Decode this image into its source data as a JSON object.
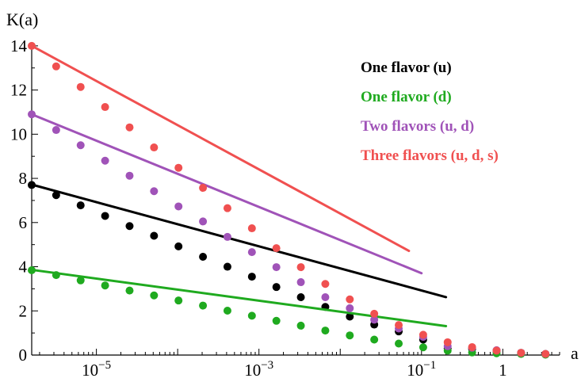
{
  "chart_data": {
    "type": "line",
    "xlabel": "a",
    "ylabel": "K(a)",
    "xscale": "log",
    "xlim": [
      1.6e-06,
      5
    ],
    "ylim": [
      0,
      15
    ],
    "x_ticks": [
      {
        "value": 1e-05,
        "base": "10",
        "exp": "−5"
      },
      {
        "value": 0.001,
        "base": "10",
        "exp": "−3"
      },
      {
        "value": 0.1,
        "base": "10",
        "exp": "−1"
      },
      {
        "value": 1,
        "base": "1",
        "exp": ""
      }
    ],
    "y_ticks": [
      0,
      2,
      4,
      6,
      8,
      10,
      12,
      14
    ],
    "legend_position": "top-right",
    "series": [
      {
        "name": "One flavor (u)",
        "color": "#000000",
        "line": {
          "x0": 1.6e-06,
          "y0": 7.72,
          "slope_per_decade": -1.0,
          "x_end": 0.2
        },
        "points_x": [
          1.6e-06,
          3.2e-06,
          6.4e-06,
          1.28e-05,
          2.56e-05,
          5.12e-05,
          0.0001024,
          0.0002048,
          0.0004096,
          0.0008192,
          0.001638,
          0.003277,
          0.006554,
          0.01311,
          0.02621,
          0.05243,
          0.1049,
          0.2097,
          0.4194,
          0.8389,
          1.678,
          3.355
        ],
        "points_y": [
          7.7,
          7.24,
          6.78,
          6.3,
          5.84,
          5.4,
          4.92,
          4.45,
          4.0,
          3.55,
          3.08,
          2.62,
          2.18,
          1.74,
          1.38,
          1.07,
          0.7,
          0.3,
          0.28,
          0.2,
          0.1,
          0.05
        ]
      },
      {
        "name": "One flavor (d)",
        "color": "#1faa1f",
        "line": {
          "x0": 1.6e-06,
          "y0": 3.86,
          "slope_per_decade": -0.5,
          "x_end": 0.2
        },
        "points_x": [
          1.6e-06,
          3.2e-06,
          6.4e-06,
          1.28e-05,
          2.56e-05,
          5.12e-05,
          0.0001024,
          0.0002048,
          0.0004096,
          0.0008192,
          0.001638,
          0.003277,
          0.006554,
          0.01311,
          0.02621,
          0.05243,
          0.1049,
          0.2097,
          0.4194,
          0.8389,
          1.678,
          3.355
        ],
        "points_y": [
          3.84,
          3.62,
          3.38,
          3.15,
          2.92,
          2.7,
          2.47,
          2.24,
          2.01,
          1.78,
          1.55,
          1.33,
          1.11,
          0.89,
          0.7,
          0.52,
          0.35,
          0.2,
          0.12,
          0.08,
          0.05,
          0.02
        ]
      },
      {
        "name": "Two flavors (u, d)",
        "color": "#a053b8",
        "line": {
          "x0": 1.6e-06,
          "y0": 10.9,
          "slope_per_decade": -1.5,
          "x_end": 0.1
        },
        "points_x": [
          1.6e-06,
          3.2e-06,
          6.4e-06,
          1.28e-05,
          2.56e-05,
          5.12e-05,
          0.0001024,
          0.0002048,
          0.0004096,
          0.0008192,
          0.001638,
          0.003277,
          0.006554,
          0.01311,
          0.02621,
          0.05243,
          0.1049,
          0.2097,
          0.4194,
          0.8389,
          1.678,
          3.355
        ],
        "points_y": [
          10.9,
          10.19,
          9.5,
          8.8,
          8.12,
          7.42,
          6.73,
          6.05,
          5.35,
          4.66,
          3.98,
          3.3,
          2.62,
          2.12,
          1.6,
          1.2,
          0.82,
          0.4,
          0.33,
          0.22,
          0.1,
          0.05
        ]
      },
      {
        "name": "Three flavors (u, d, s)",
        "color": "#f05050",
        "line": {
          "x0": 1.6e-06,
          "y0": 14.0,
          "slope_per_decade": -2.0,
          "x_end": 0.07
        },
        "points_x": [
          1.6e-06,
          3.2e-06,
          6.4e-06,
          1.28e-05,
          2.56e-05,
          5.12e-05,
          0.0001024,
          0.0002048,
          0.0004096,
          0.0008192,
          0.001638,
          0.003277,
          0.006554,
          0.01311,
          0.02621,
          0.05243,
          0.1049,
          0.2097,
          0.4194,
          0.8389,
          1.678,
          3.355
        ],
        "points_y": [
          14.0,
          13.07,
          12.14,
          11.23,
          10.31,
          9.4,
          8.48,
          7.57,
          6.65,
          5.74,
          4.84,
          3.98,
          3.22,
          2.52,
          1.87,
          1.36,
          0.92,
          0.58,
          0.36,
          0.2,
          0.1,
          0.05
        ]
      }
    ]
  }
}
